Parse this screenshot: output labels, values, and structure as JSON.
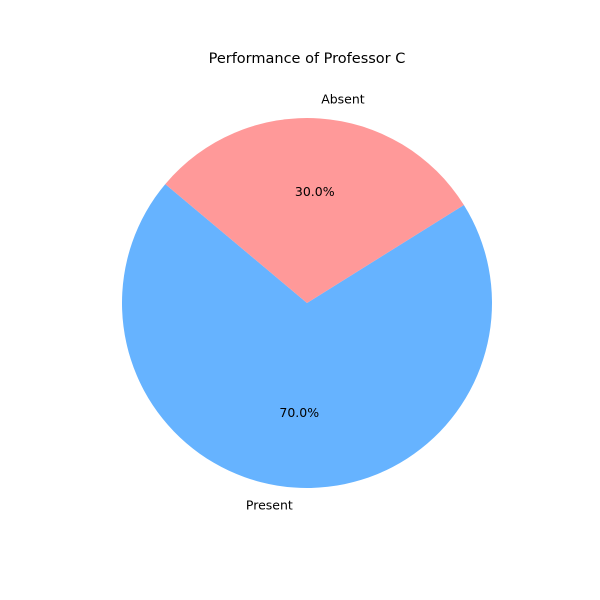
{
  "chart_data": {
    "type": "pie",
    "title": "Performance of Professor C",
    "categories": [
      "Present",
      "Absent"
    ],
    "values": [
      70,
      30
    ],
    "percent_labels": [
      "70.0%",
      "30.0%"
    ],
    "colors": [
      "#66b3ff",
      "#ff9999"
    ],
    "start_angle_deg": 140,
    "direction": "counterclockwise"
  }
}
